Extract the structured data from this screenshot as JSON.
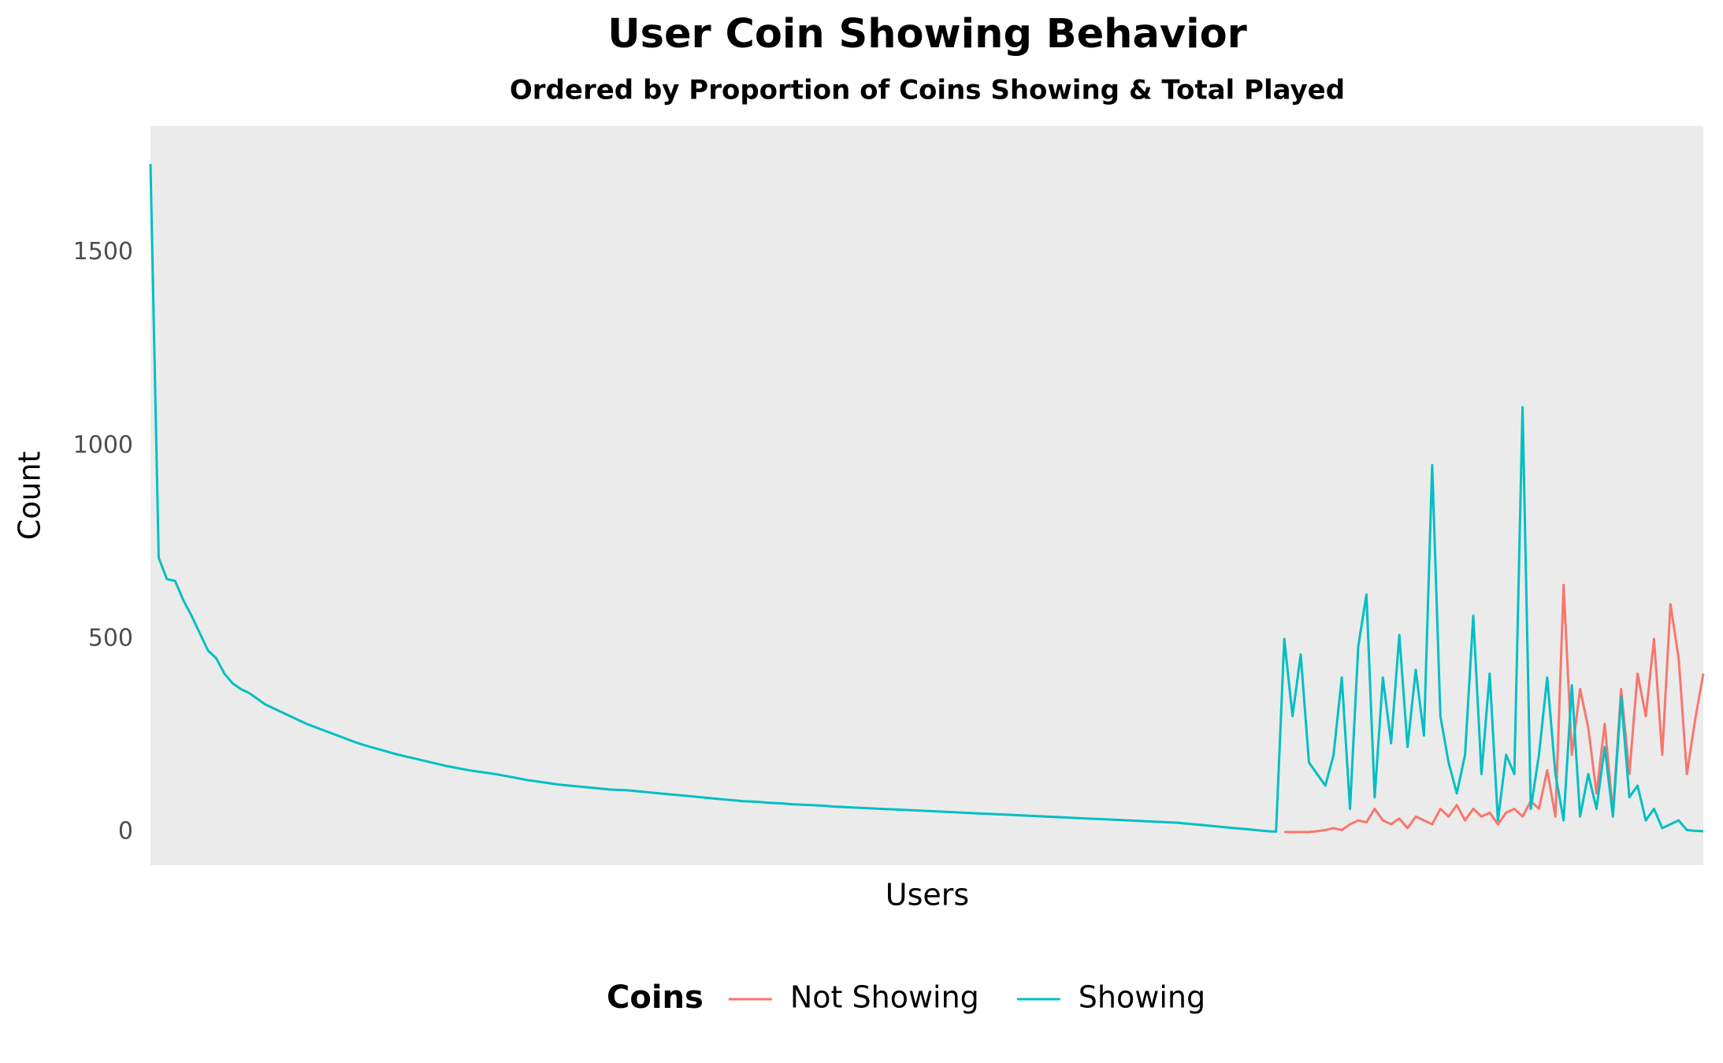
{
  "chart_data": {
    "type": "line",
    "title": "User Coin Showing Behavior",
    "subtitle": "Ordered by Proportion of Coins Showing & Total Played",
    "x_label": "Users",
    "y_label": "Count",
    "legend_title": "Coins",
    "legend_position": "bottom",
    "ylim": [
      -86,
      1828
    ],
    "yticks": [
      0,
      500,
      1000,
      1500
    ],
    "grid": false,
    "series": [
      {
        "name": "Not Showing",
        "color": "#F8766D",
        "values": [
          null,
          null,
          null,
          null,
          null,
          null,
          null,
          null,
          null,
          null,
          null,
          null,
          null,
          null,
          null,
          null,
          null,
          null,
          null,
          null,
          null,
          null,
          null,
          null,
          null,
          null,
          null,
          null,
          null,
          null,
          null,
          null,
          null,
          null,
          null,
          null,
          null,
          null,
          null,
          null,
          null,
          null,
          null,
          null,
          null,
          null,
          null,
          null,
          null,
          null,
          null,
          null,
          null,
          null,
          null,
          null,
          null,
          null,
          null,
          null,
          null,
          null,
          null,
          null,
          null,
          null,
          null,
          null,
          null,
          null,
          null,
          null,
          null,
          null,
          null,
          null,
          null,
          null,
          null,
          null,
          null,
          null,
          null,
          null,
          null,
          null,
          null,
          null,
          null,
          null,
          null,
          null,
          null,
          null,
          null,
          null,
          null,
          null,
          null,
          null,
          null,
          null,
          null,
          null,
          null,
          null,
          null,
          null,
          null,
          null,
          null,
          null,
          null,
          null,
          null,
          null,
          null,
          null,
          null,
          null,
          null,
          null,
          null,
          null,
          null,
          null,
          null,
          null,
          null,
          null,
          null,
          null,
          null,
          null,
          null,
          null,
          null,
          null,
          0,
          0,
          0,
          0,
          2,
          5,
          10,
          5,
          20,
          30,
          25,
          60,
          30,
          20,
          35,
          10,
          40,
          30,
          20,
          60,
          40,
          70,
          30,
          60,
          40,
          50,
          20,
          50,
          60,
          40,
          80,
          60,
          160,
          40,
          640,
          200,
          370,
          270,
          100,
          280,
          50,
          370,
          150,
          410,
          300,
          500,
          200,
          590,
          450,
          150,
          290,
          410
        ]
      },
      {
        "name": "Showing",
        "color": "#00BFC4",
        "values": [
          1730,
          710,
          655,
          650,
          600,
          560,
          515,
          470,
          450,
          410,
          385,
          370,
          360,
          345,
          330,
          320,
          310,
          300,
          290,
          280,
          272,
          264,
          256,
          248,
          240,
          232,
          225,
          219,
          213,
          207,
          201,
          196,
          191,
          186,
          181,
          176,
          171,
          167,
          163,
          159,
          156,
          153,
          150,
          146,
          142,
          138,
          134,
          131,
          128,
          125,
          122,
          120,
          118,
          116,
          114,
          112,
          110,
          109,
          108,
          106,
          104,
          102,
          100,
          98,
          96,
          94,
          92,
          90,
          88,
          86,
          84,
          82,
          80,
          79,
          78,
          76,
          75,
          74,
          72,
          71,
          70,
          69,
          68,
          66,
          65,
          64,
          63,
          62,
          61,
          60,
          59,
          58,
          57,
          56,
          55,
          54,
          53,
          52,
          51,
          50,
          49,
          48,
          47,
          46,
          45,
          44,
          43,
          42,
          41,
          40,
          39,
          38,
          37,
          36,
          35,
          34,
          33,
          32,
          31,
          30,
          29,
          28,
          27,
          26,
          25,
          24,
          22,
          20,
          18,
          16,
          14,
          12,
          10,
          8,
          6,
          4,
          2,
          1,
          500,
          300,
          460,
          180,
          150,
          120,
          200,
          400,
          60,
          480,
          615,
          90,
          400,
          230,
          510,
          220,
          420,
          250,
          950,
          300,
          180,
          100,
          200,
          560,
          150,
          410,
          30,
          200,
          150,
          1100,
          60,
          200,
          400,
          150,
          30,
          380,
          40,
          150,
          60,
          220,
          40,
          350,
          90,
          120,
          30,
          60,
          10,
          20,
          30,
          5,
          3,
          2
        ]
      }
    ]
  }
}
